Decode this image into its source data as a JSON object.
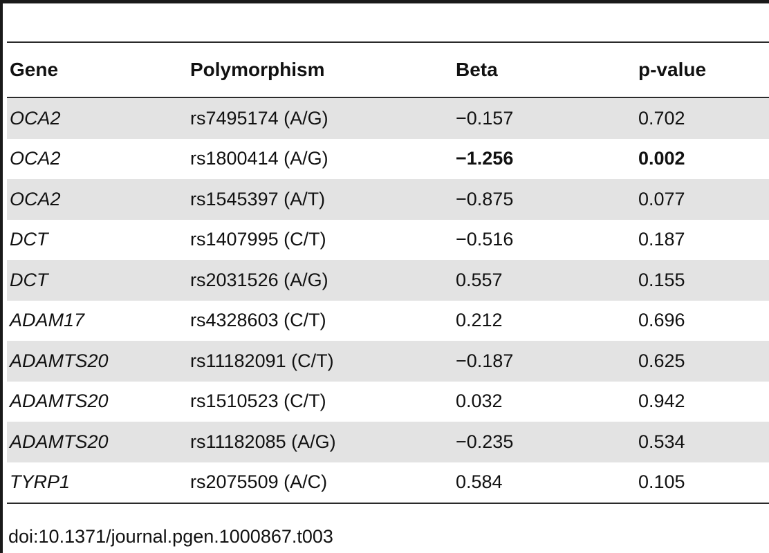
{
  "table": {
    "headers": {
      "gene": "Gene",
      "polymorphism": "Polymorphism",
      "beta": "Beta",
      "pvalue": "p-value"
    },
    "rows": [
      {
        "gene": "OCA2",
        "polymorphism": "rs7495174 (A/G)",
        "beta": "−0.157",
        "pvalue": "0.702",
        "bold": false
      },
      {
        "gene": "OCA2",
        "polymorphism": "rs1800414 (A/G)",
        "beta": "−1.256",
        "pvalue": "0.002",
        "bold": true
      },
      {
        "gene": "OCA2",
        "polymorphism": "rs1545397 (A/T)",
        "beta": "−0.875",
        "pvalue": "0.077",
        "bold": false
      },
      {
        "gene": "DCT",
        "polymorphism": "rs1407995 (C/T)",
        "beta": "−0.516",
        "pvalue": "0.187",
        "bold": false
      },
      {
        "gene": "DCT",
        "polymorphism": "rs2031526 (A/G)",
        "beta": "0.557",
        "pvalue": "0.155",
        "bold": false
      },
      {
        "gene": "ADAM17",
        "polymorphism": "rs4328603 (C/T)",
        "beta": "0.212",
        "pvalue": "0.696",
        "bold": false
      },
      {
        "gene": "ADAMTS20",
        "polymorphism": "rs11182091 (C/T)",
        "beta": "−0.187",
        "pvalue": "0.625",
        "bold": false
      },
      {
        "gene": "ADAMTS20",
        "polymorphism": "rs1510523 (C/T)",
        "beta": "0.032",
        "pvalue": "0.942",
        "bold": false
      },
      {
        "gene": "ADAMTS20",
        "polymorphism": "rs11182085 (A/G)",
        "beta": "−0.235",
        "pvalue": "0.534",
        "bold": false
      },
      {
        "gene": "TYRP1",
        "polymorphism": "rs2075509 (A/C)",
        "beta": "0.584",
        "pvalue": "0.105",
        "bold": false
      }
    ]
  },
  "footer": {
    "doi": "doi:10.1371/journal.pgen.1000867.t003"
  },
  "colors": {
    "shaded_row": "#e3e3e3",
    "rule": "#2a2a2a"
  }
}
